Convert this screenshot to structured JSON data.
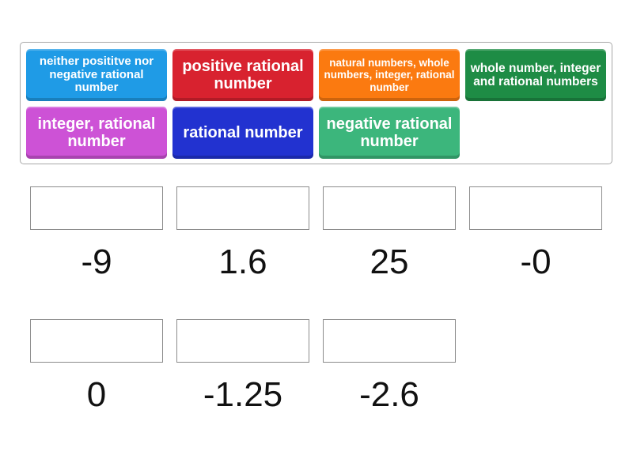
{
  "tiles": [
    {
      "label": "neither posititve nor negative rational number",
      "color": "#1f9be6"
    },
    {
      "label": "positive rational number",
      "color": "#d8222f"
    },
    {
      "label": "natural numbers, whole numbers, integer, rational number",
      "color": "#fb7a10"
    },
    {
      "label": "whole number, integer and rational numbers",
      "color": "#1e8c45"
    },
    {
      "label": "integer, rational number",
      "color": "#cd52d6"
    },
    {
      "label": "rational number",
      "color": "#2232d0"
    },
    {
      "label": "negative rational number",
      "color": "#3cb67c"
    }
  ],
  "targets": [
    {
      "value": "-9"
    },
    {
      "value": "1.6"
    },
    {
      "value": "25"
    },
    {
      "value": "-0"
    },
    {
      "value": "0"
    },
    {
      "value": "-1.25"
    },
    {
      "value": "-2.6"
    }
  ]
}
